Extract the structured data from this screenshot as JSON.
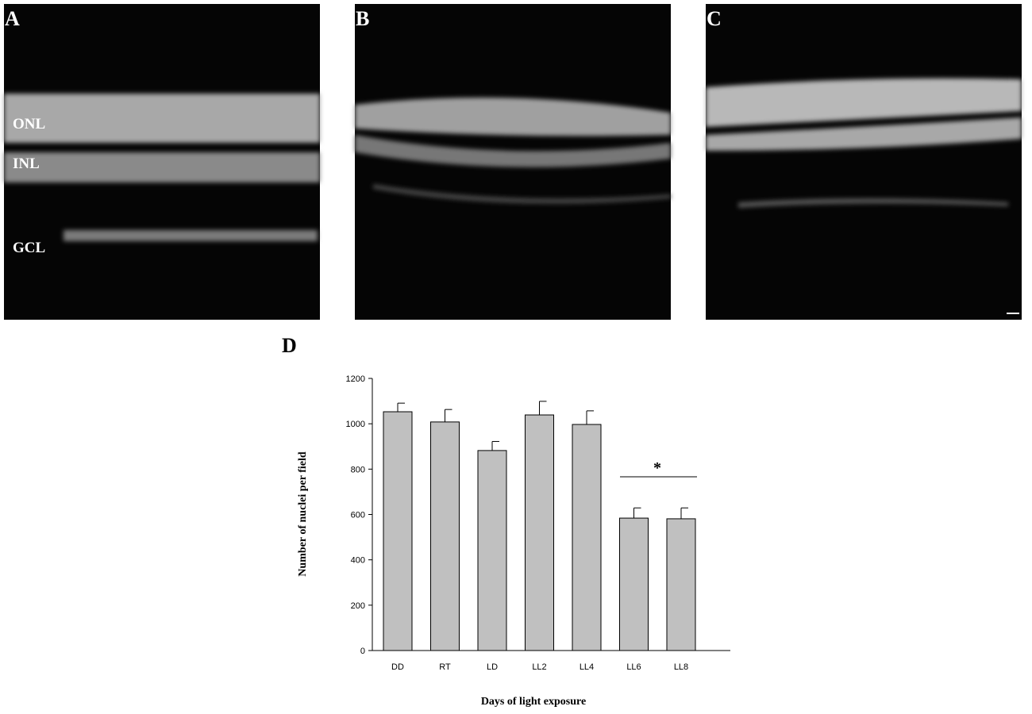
{
  "panels": {
    "a": "A",
    "b": "B",
    "c": "C",
    "d": "D"
  },
  "layers": [
    "ONL",
    "INL",
    "GCL"
  ],
  "chart_data": {
    "type": "bar",
    "y_label": "Number of nuclei per field",
    "x_label": "Days of light exposure",
    "categories": [
      "DD",
      "RT",
      "LD",
      "LL2",
      "LL4",
      "LL6",
      "LL8"
    ],
    "values": [
      1053,
      1008,
      882,
      1039,
      997,
      584,
      581
    ],
    "errors": [
      38,
      55,
      40,
      60,
      60,
      45,
      48
    ],
    "color": "#c0c0c0",
    "ylim": [
      0,
      1200
    ],
    "yticks": [
      0,
      200,
      400,
      600,
      800,
      1000,
      1200
    ],
    "annotation": "*"
  }
}
